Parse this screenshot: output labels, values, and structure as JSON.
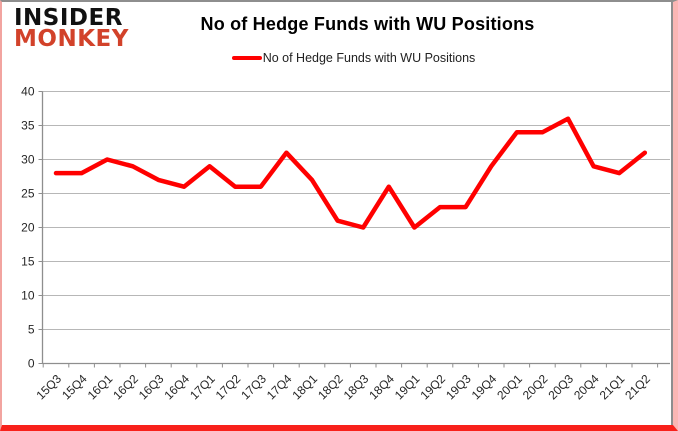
{
  "brand": {
    "line1": "INSIDER",
    "line2": "MONKEY",
    "line1_color": "#111111",
    "line2_color": "#d2422a"
  },
  "header": {
    "title": "No of Hedge Funds with WU Positions"
  },
  "legend": {
    "label": "No of Hedge Funds with WU Positions",
    "marker_color": "#ff0000"
  },
  "chart_data": {
    "type": "line",
    "title": "No of Hedge Funds with WU Positions",
    "categories": [
      "15Q3",
      "15Q4",
      "16Q1",
      "16Q2",
      "16Q3",
      "16Q4",
      "17Q1",
      "17Q2",
      "17Q3",
      "17Q4",
      "18Q1",
      "18Q2",
      "18Q3",
      "18Q4",
      "19Q1",
      "19Q2",
      "19Q3",
      "19Q4",
      "20Q1",
      "20Q2",
      "20Q3",
      "20Q4",
      "21Q1",
      "21Q2"
    ],
    "series": [
      {
        "name": "No of Hedge Funds with WU Positions",
        "color": "#ff0000",
        "values": [
          28,
          28,
          30,
          29,
          27,
          26,
          29,
          26,
          26,
          31,
          27,
          21,
          20,
          26,
          20,
          23,
          23,
          29,
          34,
          34,
          36,
          29,
          28,
          31
        ]
      }
    ],
    "ylim": [
      0,
      40
    ],
    "yticks": [
      0,
      5,
      10,
      15,
      20,
      25,
      30,
      35,
      40
    ],
    "xlabel": "",
    "ylabel": "",
    "grid": true,
    "legend_position": "top",
    "grid_color": "#b7b7b7",
    "axis_color": "#8e8e8e",
    "label_color": "#262626"
  }
}
